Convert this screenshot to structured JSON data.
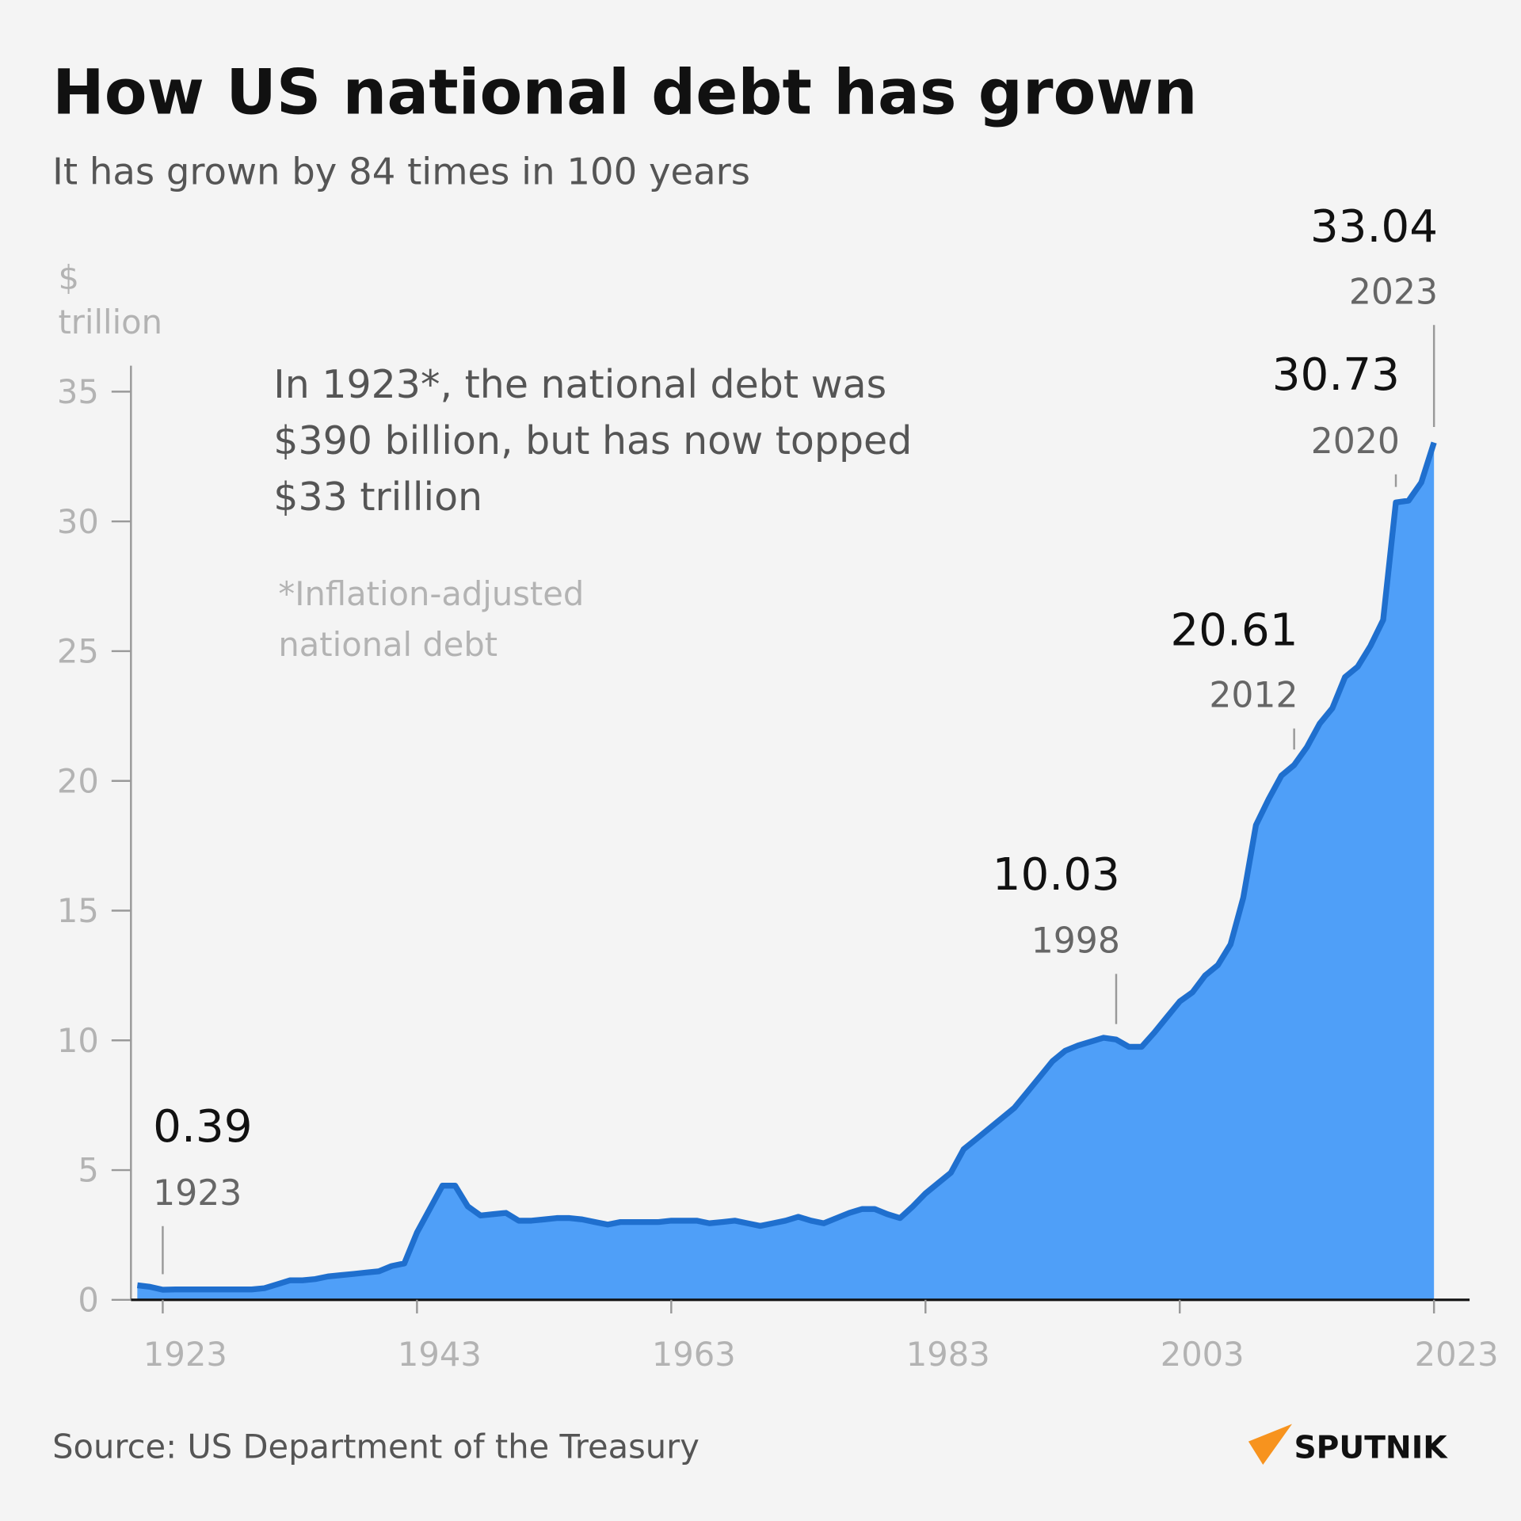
{
  "chart_data": {
    "type": "area",
    "title": "How US national debt has grown",
    "subtitle": "It has grown by 84 times in 100 years",
    "y_label": [
      "$",
      "trillion"
    ],
    "note": [
      "In 1923*, the national debt was",
      "$390 billion, but has now topped",
      "$33 trillion"
    ],
    "footnote": [
      "*Inflation-adjusted",
      "national debt"
    ],
    "source": "Source: US Department of the Treasury",
    "brand": "SPUTNIK",
    "color": "#4f9ff8",
    "line_color": "#1f6fce",
    "xlim": [
      1920.5,
      2025.8
    ],
    "ylim": [
      0,
      36
    ],
    "xticks": [
      1923,
      1943,
      1963,
      1983,
      2003,
      2023
    ],
    "yticks": [
      0,
      5,
      10,
      15,
      20,
      25,
      30,
      35
    ],
    "x": [
      1921,
      1922,
      1923,
      1924,
      1925,
      1926,
      1927,
      1928,
      1929,
      1930,
      1931,
      1932,
      1933,
      1934,
      1935,
      1936,
      1937,
      1938,
      1939,
      1940,
      1941,
      1942,
      1943,
      1944,
      1945,
      1946,
      1947,
      1948,
      1949,
      1950,
      1951,
      1952,
      1953,
      1954,
      1955,
      1956,
      1957,
      1958,
      1959,
      1960,
      1961,
      1962,
      1963,
      1964,
      1965,
      1966,
      1967,
      1968,
      1969,
      1970,
      1971,
      1972,
      1973,
      1974,
      1975,
      1976,
      1977,
      1978,
      1979,
      1980,
      1981,
      1982,
      1983,
      1984,
      1985,
      1986,
      1987,
      1988,
      1989,
      1990,
      1991,
      1992,
      1993,
      1994,
      1995,
      1996,
      1997,
      1998,
      1999,
      2000,
      2001,
      2002,
      2003,
      2004,
      2005,
      2006,
      2007,
      2008,
      2009,
      2010,
      2011,
      2012,
      2013,
      2014,
      2015,
      2016,
      2017,
      2018,
      2019,
      2020,
      2021,
      2022,
      2023
    ],
    "values": [
      0.56,
      0.5,
      0.39,
      0.4,
      0.4,
      0.4,
      0.4,
      0.4,
      0.4,
      0.4,
      0.45,
      0.6,
      0.75,
      0.75,
      0.8,
      0.9,
      0.95,
      1.0,
      1.05,
      1.1,
      1.3,
      1.4,
      2.6,
      3.5,
      4.4,
      4.4,
      3.6,
      3.25,
      3.3,
      3.35,
      3.05,
      3.05,
      3.1,
      3.15,
      3.15,
      3.1,
      3.0,
      2.9,
      3.0,
      3.0,
      3.0,
      3.0,
      3.05,
      3.05,
      3.05,
      2.95,
      3.0,
      3.05,
      2.95,
      2.85,
      2.95,
      3.05,
      3.2,
      3.05,
      2.95,
      3.15,
      3.35,
      3.5,
      3.5,
      3.3,
      3.15,
      3.6,
      4.1,
      4.5,
      4.9,
      5.8,
      6.2,
      6.6,
      7.0,
      7.4,
      8.0,
      8.6,
      9.2,
      9.6,
      9.8,
      9.95,
      10.1,
      10.03,
      9.75,
      9.75,
      10.3,
      10.9,
      11.5,
      11.85,
      12.5,
      12.9,
      13.7,
      15.5,
      18.3,
      19.3,
      20.2,
      20.61,
      21.3,
      22.2,
      22.8,
      24.0,
      24.4,
      25.2,
      26.2,
      30.73,
      30.8,
      31.5,
      33.04
    ],
    "annotations": [
      {
        "x": 1923,
        "y": 0.39
      },
      {
        "x": 1998,
        "y": 10.03
      },
      {
        "x": 2012,
        "y": 20.61
      },
      {
        "x": 2020,
        "y": 30.73
      },
      {
        "x": 2023,
        "y": 33.04
      }
    ]
  }
}
